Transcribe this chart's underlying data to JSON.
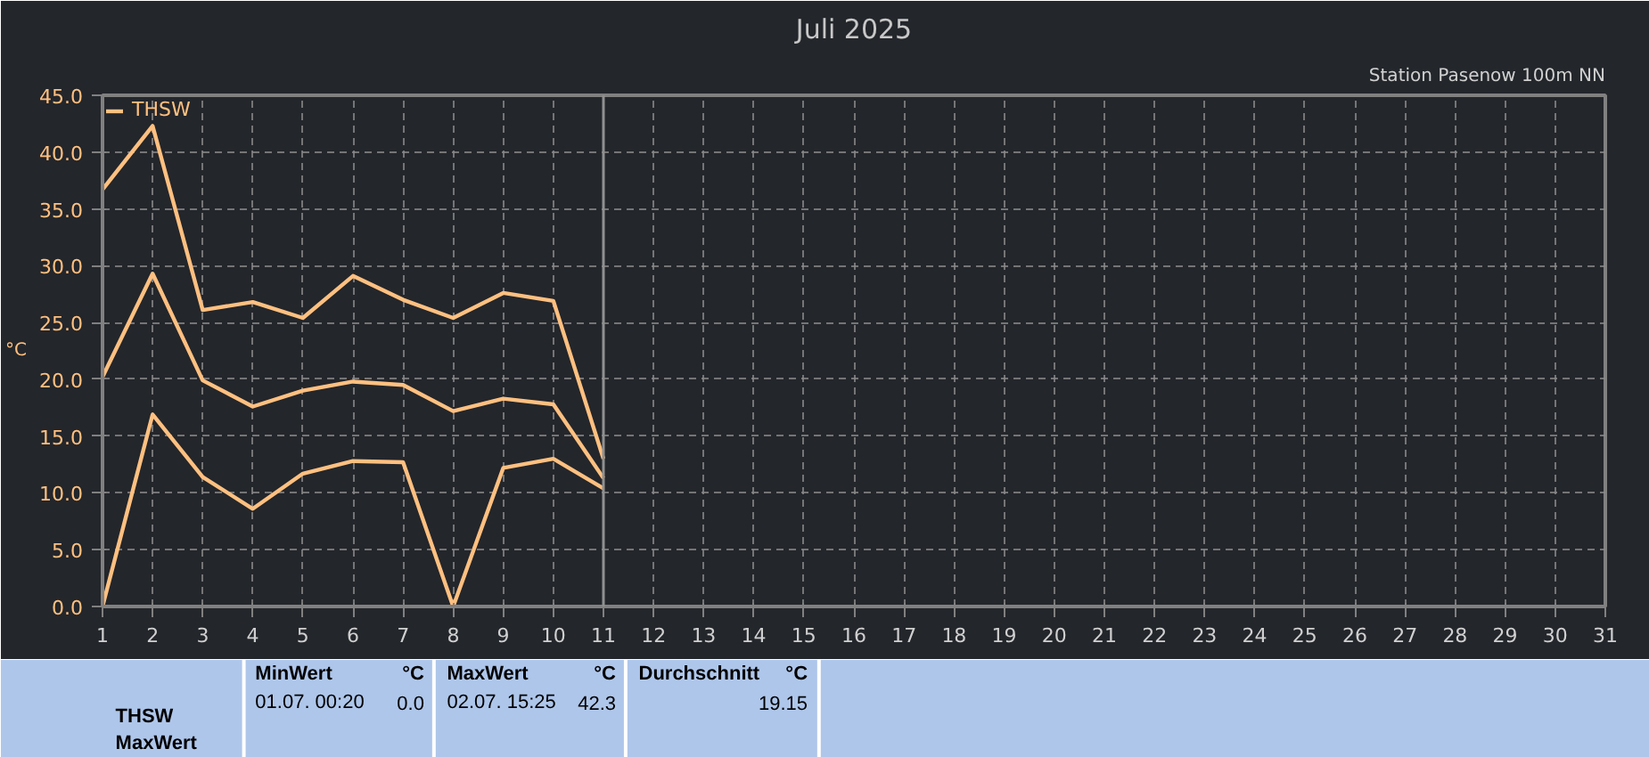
{
  "chart_data": {
    "type": "line",
    "title": "Juli 2025",
    "subtitle": "Station Pasenow 100m NN",
    "ylabel": "°C",
    "x": [
      1,
      2,
      3,
      4,
      5,
      6,
      7,
      8,
      9,
      10,
      11
    ],
    "series": [
      {
        "name": "THSW",
        "color": "#ffc080",
        "values": [
          36.7,
          42.3,
          26.1,
          26.8,
          25.4,
          29.1,
          27.0,
          25.4,
          27.6,
          26.9,
          13.0
        ]
      },
      {
        "color": "#ffc080",
        "values": [
          20.2,
          29.3,
          19.9,
          17.6,
          19.0,
          19.8,
          19.5,
          17.2,
          18.3,
          17.8,
          11.3
        ]
      },
      {
        "color": "#ffc080",
        "values": [
          0.0,
          16.9,
          11.4,
          8.6,
          11.7,
          12.8,
          12.7,
          0.0,
          12.2,
          13.0,
          10.4
        ]
      }
    ],
    "xlim": [
      1,
      31
    ],
    "xticks": [
      1,
      2,
      3,
      4,
      5,
      6,
      7,
      8,
      9,
      10,
      11,
      12,
      13,
      14,
      15,
      16,
      17,
      18,
      19,
      20,
      21,
      22,
      23,
      24,
      25,
      26,
      27,
      28,
      29,
      30,
      31
    ],
    "ylim": [
      0,
      45
    ],
    "yticks": [
      {
        "value": 0,
        "label": "0.0"
      },
      {
        "value": 5,
        "label": "5.0"
      },
      {
        "value": 10,
        "label": "10.0"
      },
      {
        "value": 15,
        "label": "15.0"
      },
      {
        "value": 20,
        "label": "20.0"
      },
      {
        "value": 25,
        "label": "25.0"
      },
      {
        "value": 30,
        "label": "30.0"
      },
      {
        "value": 35,
        "label": "35.0"
      },
      {
        "value": 40,
        "label": "40.0"
      },
      {
        "value": 45,
        "label": "45.0"
      }
    ],
    "grid": true,
    "legend": "top left",
    "marker": "none",
    "line_style": "solid",
    "ref_lines": [
      {
        "axis": "x",
        "value": 11,
        "color": "#909090"
      }
    ],
    "annotations": [
      "THSW",
      "MaxWert",
      "MinWert",
      "°C",
      "01.07.  00:20",
      "0.0",
      "MaxWert",
      "°C",
      "02.07.  15:25",
      "42.3",
      "Durchschnitt",
      "°C",
      "19.15"
    ]
  }
}
